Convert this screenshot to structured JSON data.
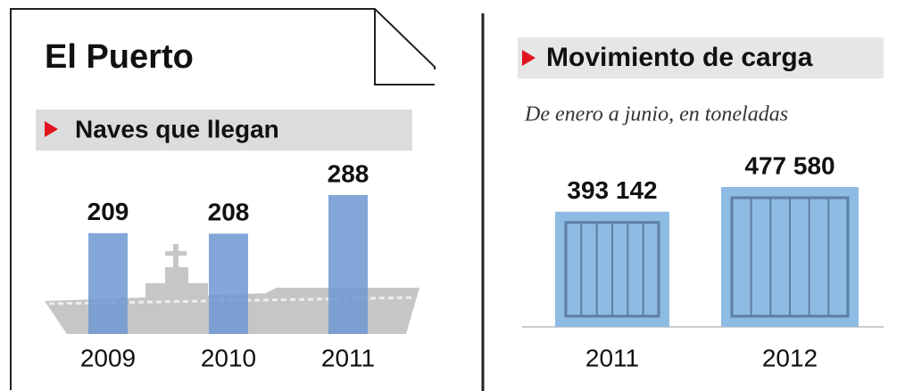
{
  "title": "El Puerto",
  "chart_data": [
    {
      "type": "bar",
      "title": "Naves que llegan",
      "categories": [
        "2009",
        "2010",
        "2011"
      ],
      "values": [
        209,
        208,
        288
      ],
      "color": "#6f98d2"
    },
    {
      "type": "bar",
      "title": "Movimiento de carga",
      "subtitle": "De enero a junio, en toneladas",
      "categories": [
        "2011",
        "2012"
      ],
      "values": [
        393142,
        477580
      ],
      "value_labels": [
        "393 142",
        "477 580"
      ],
      "color": "#8dbbe3"
    }
  ]
}
